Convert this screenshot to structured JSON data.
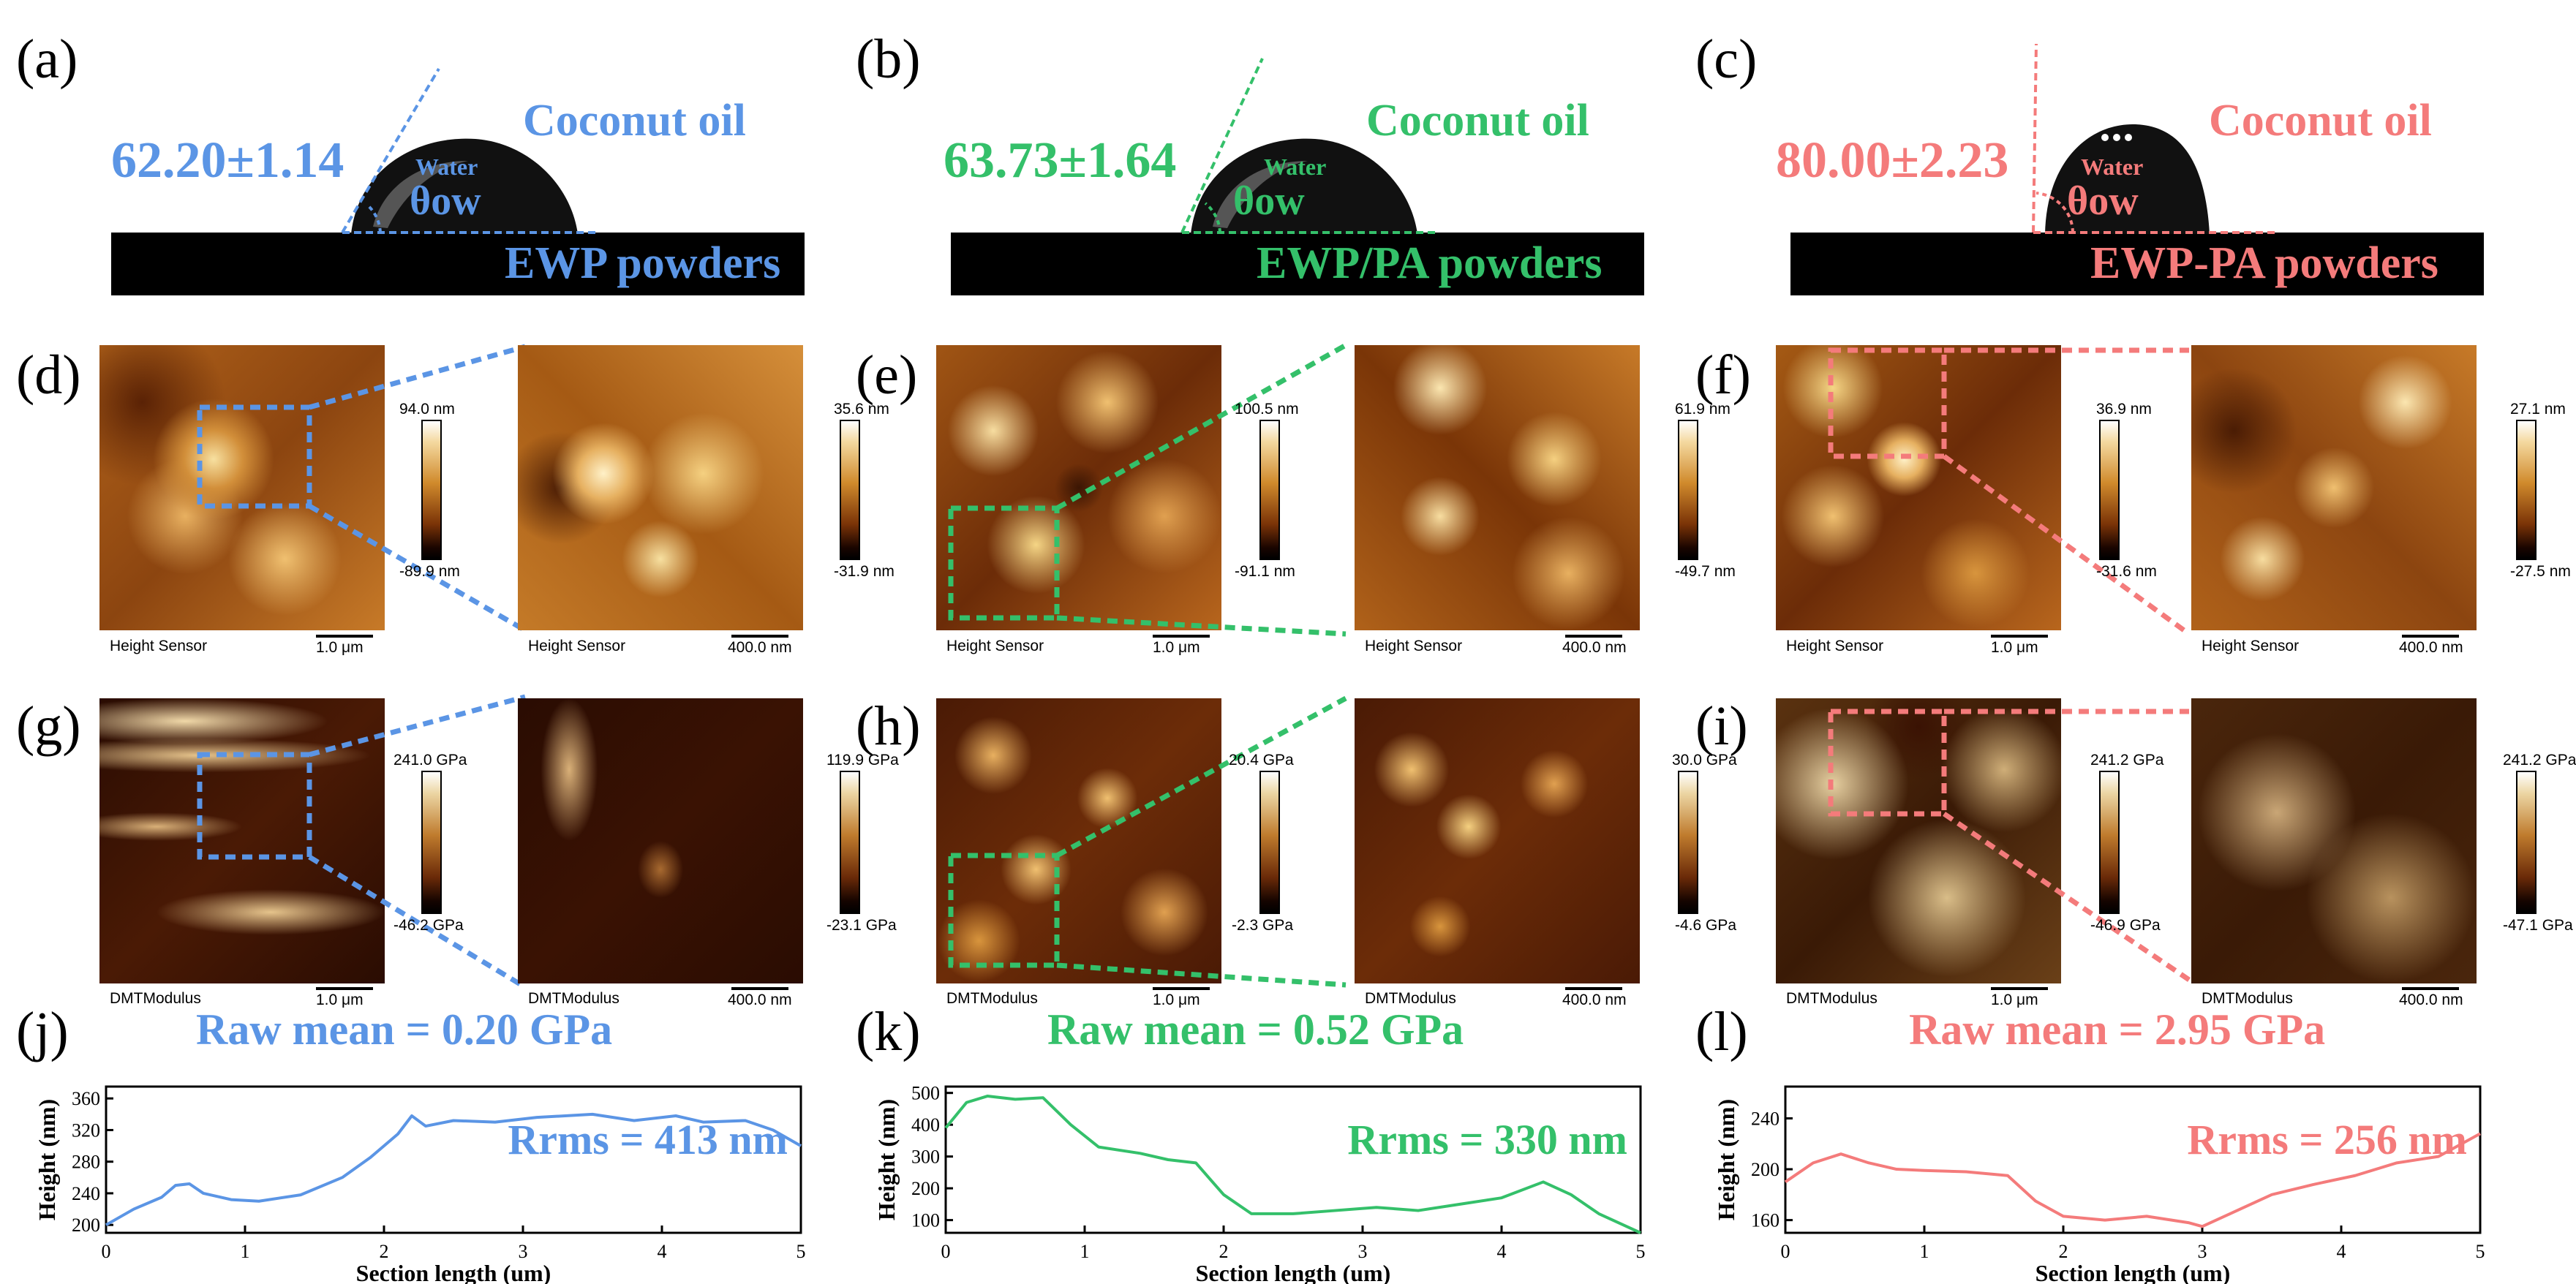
{
  "colors": {
    "blue": "#5b95e5",
    "green": "#34c06a",
    "red": "#f47b7b"
  },
  "panel_letters": {
    "a": "(a)",
    "b": "(b)",
    "c": "(c)",
    "d": "(d)",
    "e": "(e)",
    "f": "(f)",
    "g": "(g)",
    "h": "(h)",
    "i": "(i)",
    "j": "(j)",
    "k": "(k)",
    "l": "(l)"
  },
  "contact_angle": [
    {
      "angle": "62.20±1.14",
      "oil": "Coconut oil",
      "water": "Water",
      "theta": "θow",
      "sample": "EWP powders"
    },
    {
      "angle": "63.73±1.64",
      "oil": "Coconut oil",
      "water": "Water",
      "theta": "θow",
      "sample": "EWP/PA powders"
    },
    {
      "angle": "80.00±2.23",
      "oil": "Coconut oil",
      "water": "Water",
      "theta": "θow",
      "sample": "EWP-PA powders"
    }
  ],
  "height_maps": [
    {
      "left_label": "Height Sensor",
      "left_scale": "1.0 μm",
      "left_max": "94.0 nm",
      "left_min": "-89.9 nm",
      "right_label": "Height Sensor",
      "right_scale": "400.0 nm",
      "right_max": "35.6 nm",
      "right_min": "-31.9 nm"
    },
    {
      "left_label": "Height Sensor",
      "left_scale": "1.0 μm",
      "left_max": "100.5 nm",
      "left_min": "-91.1 nm",
      "right_label": "Height Sensor",
      "right_scale": "400.0 nm",
      "right_max": "61.9 nm",
      "right_min": "-49.7 nm"
    },
    {
      "left_label": "Height Sensor",
      "left_scale": "1.0 μm",
      "left_max": "36.9 nm",
      "left_min": "-31.6 nm",
      "right_label": "Height Sensor",
      "right_scale": "400.0 nm",
      "right_max": "27.1 nm",
      "right_min": "-27.5 nm"
    }
  ],
  "modulus_maps": [
    {
      "left_label": "DMTModulus",
      "left_scale": "1.0 μm",
      "left_max": "241.0 GPa",
      "left_min": "-46.2 GPa",
      "right_label": "DMTModulus",
      "right_scale": "400.0 nm",
      "right_max": "119.9 GPa",
      "right_min": "-23.1 GPa",
      "raw_mean": "Raw mean = 0.20 GPa"
    },
    {
      "left_label": "DMTModulus",
      "left_scale": "1.0 μm",
      "left_max": "20.4 GPa",
      "left_min": "-2.3 GPa",
      "right_label": "DMTModulus",
      "right_scale": "400.0 nm",
      "right_max": "30.0 GPa",
      "right_min": "-4.6 GPa",
      "raw_mean": "Raw mean = 0.52 GPa"
    },
    {
      "left_label": "DMTModulus",
      "left_scale": "1.0 μm",
      "left_max": "241.2 GPa",
      "left_min": "-46.9 GPa",
      "right_label": "DMTModulus",
      "right_scale": "400.0 nm",
      "right_max": "241.2 GPa",
      "right_min": "-47.1 GPa",
      "raw_mean": "Raw mean = 2.95 GPa"
    }
  ],
  "chart_data": [
    {
      "type": "line",
      "title": "",
      "xlabel": "Section length (um)",
      "ylabel": "Height (nm)",
      "xlim": [
        0,
        5
      ],
      "ylim": [
        190,
        375
      ],
      "xticks": [
        "0",
        "1",
        "2",
        "3",
        "4",
        "5"
      ],
      "yticks": [
        "200",
        "240",
        "280",
        "320",
        "360"
      ],
      "annotation": "Rrms = 413 nm",
      "x": [
        0,
        0.2,
        0.4,
        0.5,
        0.6,
        0.7,
        0.9,
        1.1,
        1.4,
        1.7,
        1.9,
        2.1,
        2.2,
        2.3,
        2.5,
        2.8,
        3.1,
        3.5,
        3.8,
        4.1,
        4.3,
        4.6,
        4.8,
        5.0
      ],
      "y": [
        200,
        220,
        235,
        250,
        252,
        240,
        232,
        230,
        238,
        260,
        285,
        315,
        338,
        325,
        332,
        330,
        336,
        340,
        332,
        338,
        330,
        332,
        320,
        300
      ]
    },
    {
      "type": "line",
      "title": "",
      "xlabel": "Section length (um)",
      "ylabel": "Height (nm)",
      "xlim": [
        0,
        5
      ],
      "ylim": [
        60,
        520
      ],
      "xticks": [
        "0",
        "1",
        "2",
        "3",
        "4",
        "5"
      ],
      "yticks": [
        "100",
        "200",
        "300",
        "400",
        "500"
      ],
      "annotation": "Rrms = 330 nm",
      "x": [
        0,
        0.15,
        0.3,
        0.5,
        0.7,
        0.9,
        1.1,
        1.4,
        1.6,
        1.8,
        2.0,
        2.2,
        2.5,
        2.8,
        3.1,
        3.4,
        3.7,
        4.0,
        4.3,
        4.5,
        4.7,
        4.9,
        5.0
      ],
      "y": [
        390,
        470,
        490,
        480,
        485,
        400,
        330,
        310,
        290,
        280,
        180,
        120,
        120,
        130,
        140,
        130,
        150,
        170,
        220,
        180,
        120,
        80,
        60
      ]
    },
    {
      "type": "line",
      "title": "",
      "xlabel": "Section length (um)",
      "ylabel": "Height (nm)",
      "xlim": [
        0,
        5
      ],
      "ylim": [
        150,
        265
      ],
      "xticks": [
        "0",
        "1",
        "2",
        "3",
        "4",
        "5"
      ],
      "yticks": [
        "160",
        "200",
        "240"
      ],
      "annotation": "Rrms = 256 nm",
      "x": [
        0,
        0.2,
        0.4,
        0.6,
        0.8,
        1.0,
        1.3,
        1.6,
        1.8,
        2.0,
        2.3,
        2.6,
        2.9,
        3.0,
        3.2,
        3.5,
        3.8,
        4.1,
        4.4,
        4.7,
        5.0
      ],
      "y": [
        190,
        205,
        212,
        205,
        200,
        199,
        198,
        195,
        175,
        163,
        160,
        163,
        158,
        155,
        165,
        180,
        188,
        195,
        205,
        210,
        228
      ]
    }
  ],
  "raw_mean_labels": [
    "Raw mean = 0.20 GPa",
    "Raw mean = 0.52 GPa",
    "Raw mean = 2.95 GPa"
  ]
}
